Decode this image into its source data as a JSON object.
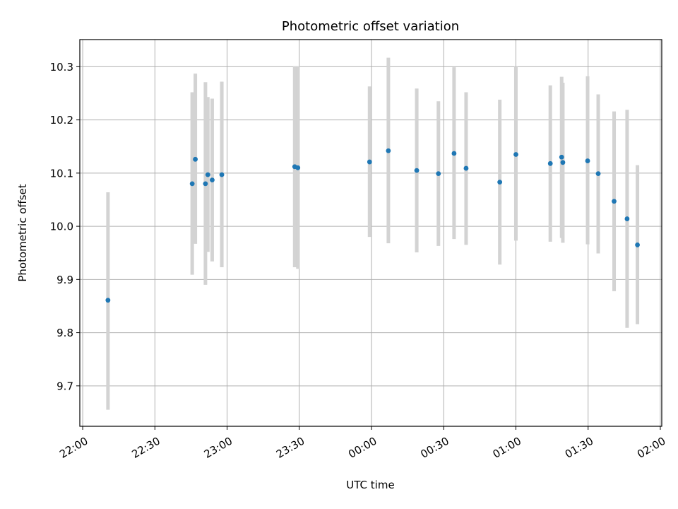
{
  "chart_data": {
    "type": "scatter",
    "title": "Photometric offset variation",
    "xlabel": "UTC time",
    "ylabel": "Photometric offset",
    "grid": true,
    "xlim_minutes": [
      -1.2,
      240.6
    ],
    "ylim": [
      9.624,
      10.351
    ],
    "xticks": [
      {
        "label": "22:00",
        "minute": 0
      },
      {
        "label": "22:30",
        "minute": 30
      },
      {
        "label": "23:00",
        "minute": 60
      },
      {
        "label": "23:30",
        "minute": 90
      },
      {
        "label": "00:00",
        "minute": 120
      },
      {
        "label": "00:30",
        "minute": 150
      },
      {
        "label": "01:00",
        "minute": 180
      },
      {
        "label": "01:30",
        "minute": 210
      },
      {
        "label": "02:00",
        "minute": 240
      }
    ],
    "yticks": [
      {
        "label": "9.7",
        "value": 9.7
      },
      {
        "label": "9.8",
        "value": 9.8
      },
      {
        "label": "9.9",
        "value": 9.9
      },
      {
        "label": "10.0",
        "value": 10.0
      },
      {
        "label": "10.1",
        "value": 10.1
      },
      {
        "label": "10.2",
        "value": 10.2
      },
      {
        "label": "10.3",
        "value": 10.3
      }
    ],
    "marker_color": "#1f77b4",
    "errorbar_color": "#d3d3d3",
    "points": [
      {
        "t": 10.5,
        "y": 9.861,
        "lo": 9.655,
        "hi": 10.064
      },
      {
        "t": 45.5,
        "y": 10.08,
        "lo": 9.909,
        "hi": 10.252
      },
      {
        "t": 46.8,
        "y": 10.126,
        "lo": 9.967,
        "hi": 10.287
      },
      {
        "t": 51.0,
        "y": 10.08,
        "lo": 9.89,
        "hi": 10.271
      },
      {
        "t": 52.0,
        "y": 10.097,
        "lo": 9.952,
        "hi": 10.243
      },
      {
        "t": 53.8,
        "y": 10.087,
        "lo": 9.934,
        "hi": 10.24
      },
      {
        "t": 57.8,
        "y": 10.097,
        "lo": 9.923,
        "hi": 10.272
      },
      {
        "t": 88.1,
        "y": 10.112,
        "lo": 9.923,
        "hi": 10.301
      },
      {
        "t": 89.4,
        "y": 10.11,
        "lo": 9.92,
        "hi": 10.301
      },
      {
        "t": 119.2,
        "y": 10.121,
        "lo": 9.98,
        "hi": 10.263
      },
      {
        "t": 127.0,
        "y": 10.142,
        "lo": 9.968,
        "hi": 10.317
      },
      {
        "t": 138.8,
        "y": 10.105,
        "lo": 9.951,
        "hi": 10.259
      },
      {
        "t": 147.8,
        "y": 10.099,
        "lo": 9.963,
        "hi": 10.235
      },
      {
        "t": 154.3,
        "y": 10.137,
        "lo": 9.976,
        "hi": 10.299
      },
      {
        "t": 159.3,
        "y": 10.109,
        "lo": 9.965,
        "hi": 10.252
      },
      {
        "t": 173.3,
        "y": 10.083,
        "lo": 9.928,
        "hi": 10.238
      },
      {
        "t": 180.0,
        "y": 10.135,
        "lo": 9.973,
        "hi": 10.3
      },
      {
        "t": 194.3,
        "y": 10.118,
        "lo": 9.971,
        "hi": 10.265
      },
      {
        "t": 199.0,
        "y": 10.13,
        "lo": 9.978,
        "hi": 10.281
      },
      {
        "t": 199.5,
        "y": 10.12,
        "lo": 9.969,
        "hi": 10.27
      },
      {
        "t": 209.8,
        "y": 10.123,
        "lo": 9.966,
        "hi": 10.282
      },
      {
        "t": 214.2,
        "y": 10.099,
        "lo": 9.949,
        "hi": 10.248
      },
      {
        "t": 220.8,
        "y": 10.047,
        "lo": 9.878,
        "hi": 10.216
      },
      {
        "t": 226.2,
        "y": 10.014,
        "lo": 9.809,
        "hi": 10.219
      },
      {
        "t": 230.5,
        "y": 9.965,
        "lo": 9.816,
        "hi": 10.115
      }
    ]
  }
}
